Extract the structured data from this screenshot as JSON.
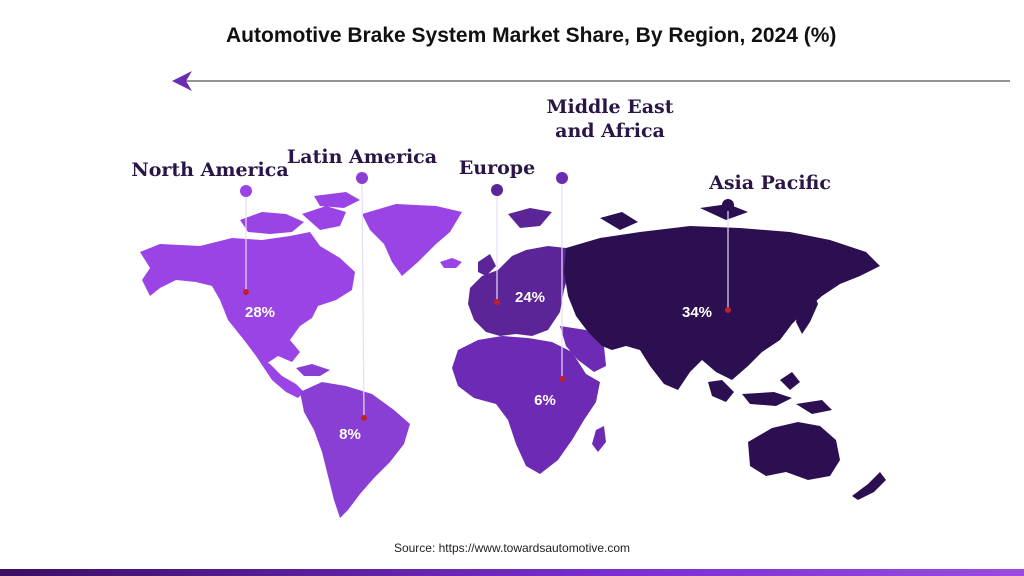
{
  "title": "Automotive Brake System Market Share, By Region, 2024 (%)",
  "source": "Source: https://www.towardsautomotive.com",
  "colors": {
    "north_america": "#9a44e6",
    "latin_america": "#8a3fd4",
    "europe": "#5b2598",
    "middle_east_africa": "#6d2ab4",
    "asia_pacific": "#2c0f50",
    "label_text": "#2a1646",
    "marker_red": "#c0202c",
    "arrow": "#6a2bb5"
  },
  "regions": [
    {
      "id": "north_america",
      "name_lines": [
        "North America"
      ],
      "value": 28,
      "label": "28%"
    },
    {
      "id": "latin_america",
      "name_lines": [
        "Latin America"
      ],
      "value": 8,
      "label": "8%"
    },
    {
      "id": "europe",
      "name_lines": [
        "Europe"
      ],
      "value": 24,
      "label": "24%"
    },
    {
      "id": "middle_east_africa",
      "name_lines": [
        "Middle East",
        "and Africa"
      ],
      "value": 6,
      "label": "6%"
    },
    {
      "id": "asia_pacific",
      "name_lines": [
        "Asia Pacific"
      ],
      "value": 34,
      "label": "34%"
    }
  ]
}
